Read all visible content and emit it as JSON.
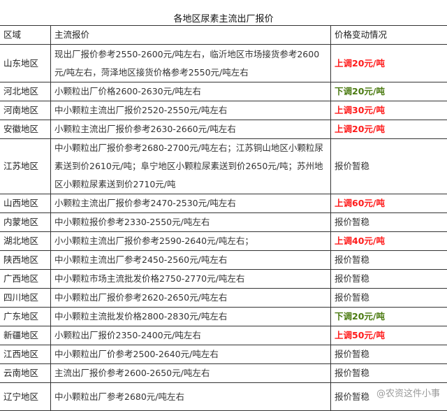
{
  "title": "各地区尿素主流出厂报价",
  "headers": [
    "区域",
    "主流报价",
    "价格变动情况"
  ],
  "colors": {
    "up": "#ff1a1a",
    "down": "#4a7a10",
    "flat": "#333333"
  },
  "rows": [
    {
      "region": "山东地区",
      "price": "现出厂报价参考2550-2600元/吨左右，临沂地区市场接货参考2600元/吨左右，菏泽地区接货价格参考2550元/吨左右",
      "change": "上调20元/吨",
      "trend": "up"
    },
    {
      "region": "河北地区",
      "price": "小颗粒出厂价格2600-2630元/吨左右",
      "change": "下调20元/吨",
      "trend": "down"
    },
    {
      "region": "河南地区",
      "price": "中小颗粒主流出厂报价2520-2550元/吨左右",
      "change": "上调30元/吨",
      "trend": "up"
    },
    {
      "region": "安徽地区",
      "price": "小颗粒主流出厂报价参考2630-2660元/吨左右",
      "change": "上调20元/吨",
      "trend": "up"
    },
    {
      "region": "江苏地区",
      "price": "中小颗粒出厂报价参考2680-2700元/吨左右；江苏铜山地区小颗粒尿素送到价2610元/吨；阜宁地区小颗粒尿素送到价2650元/吨；苏州地区小颗粒尿素送到价2710元/吨",
      "change": "报价暂稳",
      "trend": "flat"
    },
    {
      "region": "山西地区",
      "price": "小颗粒主流出厂报价参考2470-2530元/吨左右",
      "change": "上调60元/吨",
      "trend": "up"
    },
    {
      "region": "内蒙地区",
      "price": "中小颗粒报价参考2330-2550元/吨左右",
      "change": "报价暂稳",
      "trend": "flat"
    },
    {
      "region": "湖北地区",
      "price": "小小颗粒主流出厂报价参考2590-2640元/吨左右；",
      "change": "上调40元/吨",
      "trend": "up"
    },
    {
      "region": "陕西地区",
      "price": "中小颗粒主流出厂参考2450-2560元/吨左右",
      "change": "报价暂稳",
      "trend": "flat"
    },
    {
      "region": "广西地区",
      "price": "中小颗粒市场主流批发价格2750-2770元/吨左右",
      "change": "报价暂稳",
      "trend": "flat"
    },
    {
      "region": "四川地区",
      "price": "中小颗粒出厂报价参考2620-2650元/吨左右",
      "change": "报价暂稳",
      "trend": "flat"
    },
    {
      "region": "广东地区",
      "price": "中小颗粒主流批发价格2800-2830元/吨左右",
      "change": "下调20元/吨",
      "trend": "down"
    },
    {
      "region": "新疆地区",
      "price": "小颗粒出厂报价2350-2400元/吨左右",
      "change": "上调50元/吨",
      "trend": "up"
    },
    {
      "region": "江西地区",
      "price": "中小颗粒出厂价参考2500-2640元/吨左右",
      "change": "报价暂稳",
      "trend": "flat"
    },
    {
      "region": "云南地区",
      "price": "主流出厂报价参考2600-2650元/吨左右",
      "change": "报价暂稳",
      "trend": "flat"
    },
    {
      "region": "辽宁地区",
      "price": "中小颗粒出厂参考2680元/吨左右",
      "change": "报价暂稳",
      "trend": "flat"
    }
  ],
  "watermark": "@农资这件小事"
}
